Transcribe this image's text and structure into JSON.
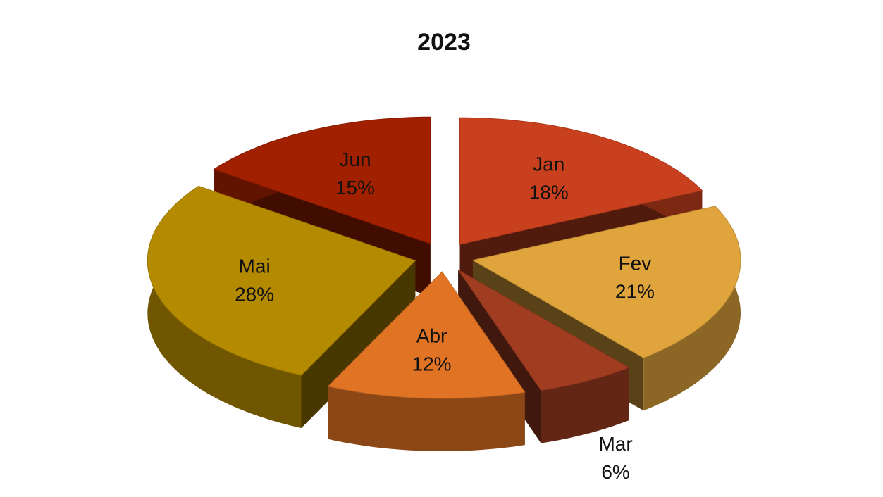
{
  "chart_data": {
    "type": "pie",
    "title": "2023",
    "categories": [
      "Jan",
      "Fev",
      "Mar",
      "Abr",
      "Mai",
      "Jun"
    ],
    "values": [
      18,
      21,
      6,
      12,
      28,
      15
    ],
    "value_labels": [
      "18%",
      "21%",
      "6%",
      "12%",
      "28%",
      "15%"
    ],
    "colors": [
      "#c8401e",
      "#e0a43c",
      "#a03c20",
      "#e07424",
      "#b48a00",
      "#a02000"
    ]
  }
}
